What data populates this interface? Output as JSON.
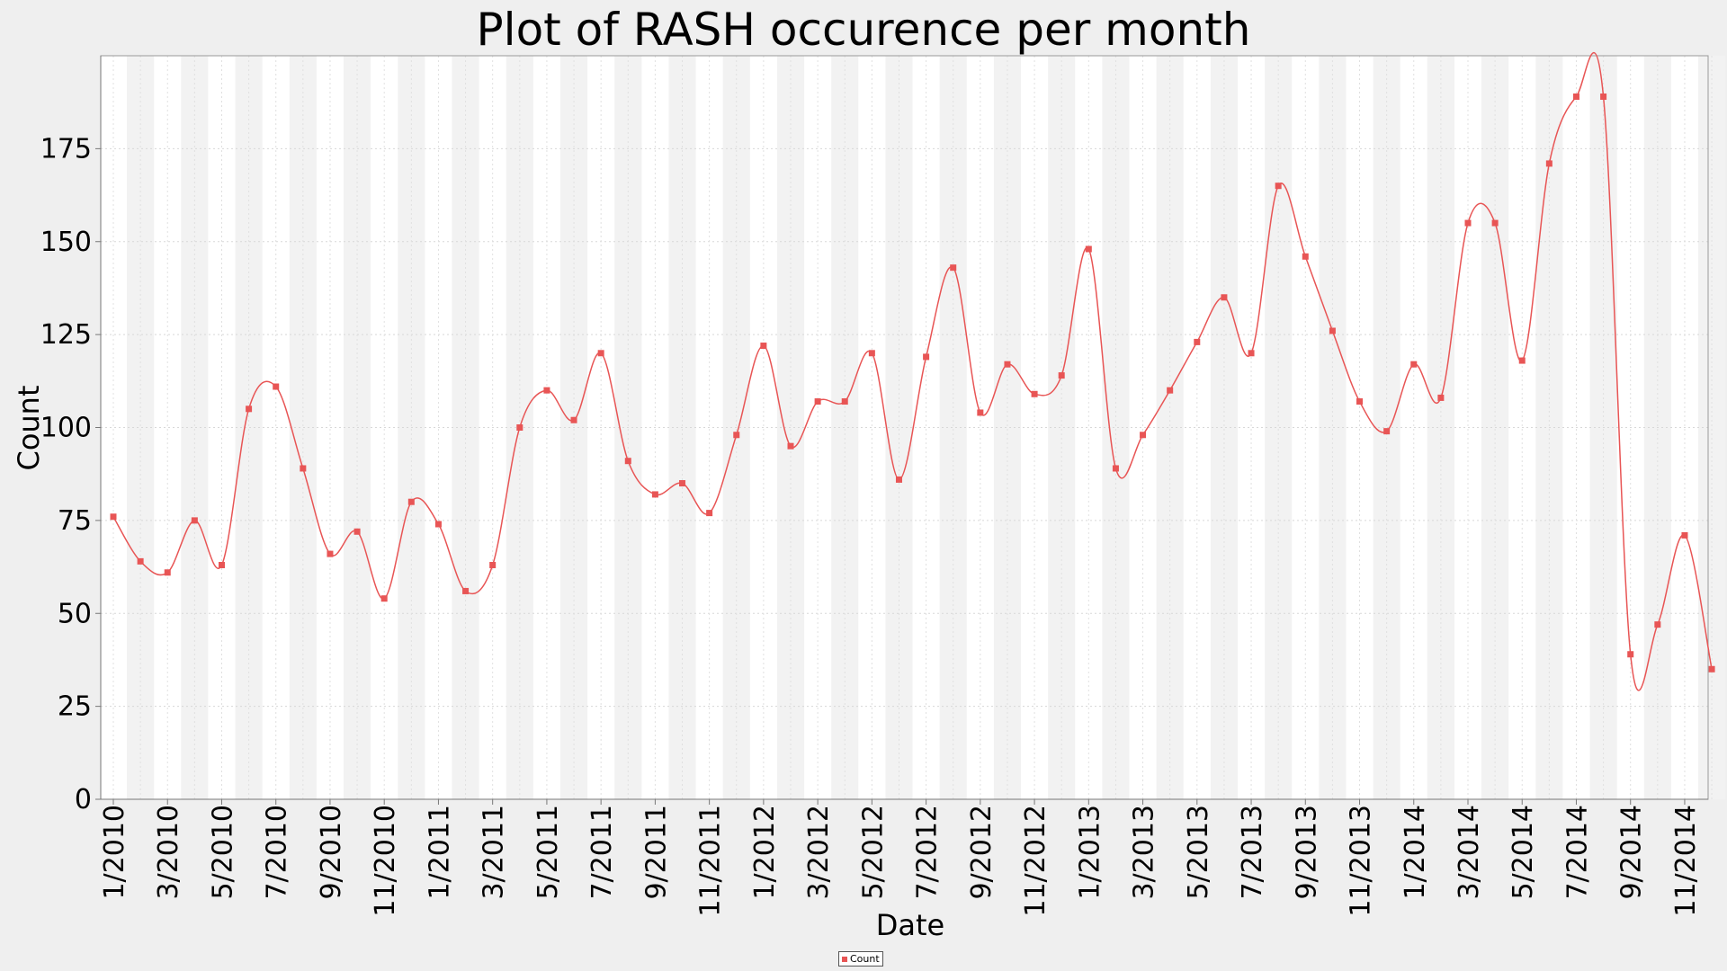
{
  "chart_data": {
    "type": "line",
    "title": "Plot of RASH occurence per month",
    "xlabel": "Date",
    "ylabel": "Count",
    "ylim": [
      0,
      200
    ],
    "yticks": [
      0,
      25,
      50,
      75,
      100,
      125,
      150,
      175
    ],
    "xticks": [
      "1/2010",
      "3/2010",
      "5/2010",
      "7/2010",
      "9/2010",
      "11/2010",
      "1/2011",
      "3/2011",
      "5/2011",
      "7/2011",
      "9/2011",
      "11/2011",
      "1/2012",
      "3/2012",
      "5/2012",
      "7/2012",
      "9/2012",
      "11/2012",
      "1/2013",
      "3/2013",
      "5/2013",
      "7/2013",
      "9/2013",
      "11/2013",
      "1/2014",
      "3/2014",
      "5/2014",
      "7/2014",
      "9/2014",
      "11/2014"
    ],
    "grid": true,
    "legend_position": "bottom-center",
    "colors": {
      "series": "#e85555",
      "background": "#efefef",
      "plot_band_light": "#ffffff",
      "plot_band_dark": "#f2f2f2"
    },
    "series": [
      {
        "name": "Count",
        "x": [
          "1/2010",
          "2/2010",
          "3/2010",
          "4/2010",
          "5/2010",
          "6/2010",
          "7/2010",
          "8/2010",
          "9/2010",
          "10/2010",
          "11/2010",
          "12/2010",
          "1/2011",
          "2/2011",
          "3/2011",
          "4/2011",
          "5/2011",
          "6/2011",
          "7/2011",
          "8/2011",
          "9/2011",
          "10/2011",
          "11/2011",
          "12/2011",
          "1/2012",
          "2/2012",
          "3/2012",
          "4/2012",
          "5/2012",
          "6/2012",
          "7/2012",
          "8/2012",
          "9/2012",
          "10/2012",
          "11/2012",
          "12/2012",
          "1/2013",
          "2/2013",
          "3/2013",
          "4/2013",
          "5/2013",
          "6/2013",
          "7/2013",
          "8/2013",
          "9/2013",
          "10/2013",
          "11/2013",
          "12/2013",
          "1/2014",
          "2/2014",
          "3/2014",
          "4/2014",
          "5/2014",
          "6/2014",
          "7/2014",
          "8/2014",
          "9/2014",
          "10/2014",
          "11/2014",
          "12/2014"
        ],
        "values": [
          76,
          64,
          61,
          75,
          63,
          105,
          111,
          89,
          66,
          72,
          54,
          80,
          74,
          56,
          63,
          100,
          110,
          102,
          120,
          91,
          82,
          85,
          77,
          98,
          122,
          95,
          107,
          107,
          120,
          86,
          119,
          143,
          104,
          117,
          109,
          114,
          148,
          89,
          98,
          110,
          123,
          135,
          120,
          165,
          146,
          126,
          107,
          99,
          117,
          108,
          155,
          155,
          118,
          171,
          189,
          189,
          39,
          47,
          71,
          35
        ]
      }
    ]
  }
}
